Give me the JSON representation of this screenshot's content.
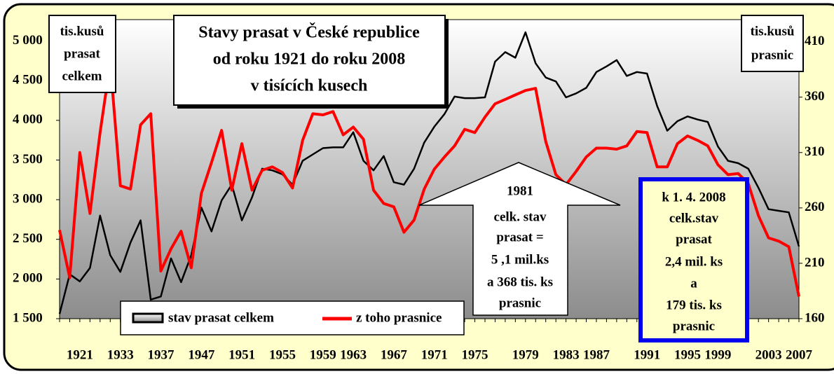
{
  "chart_data": {
    "type": "line",
    "title": [
      "Stavy prasat v České republice",
      "od roku 1921 do roku 2008",
      "v tisících kusech"
    ],
    "y_label": [
      "tis.kusů",
      "prasat",
      "celkem"
    ],
    "y2_label": [
      "tis.kusů",
      "prasnic"
    ],
    "categories": [
      null,
      null,
      "1921",
      null,
      null,
      null,
      "1933",
      null,
      null,
      null,
      "1937",
      null,
      null,
      null,
      "1947",
      null,
      null,
      null,
      "1951",
      null,
      null,
      null,
      "1955",
      null,
      null,
      null,
      "1959",
      null,
      null,
      "1963",
      null,
      null,
      null,
      "1967",
      null,
      null,
      null,
      "1971",
      null,
      null,
      null,
      "1975",
      null,
      null,
      null,
      null,
      "1979",
      null,
      null,
      null,
      "1983",
      null,
      null,
      "1987",
      null,
      null,
      null,
      null,
      "1991",
      null,
      null,
      null,
      "1995",
      null,
      null,
      "1999",
      null,
      null,
      null,
      null,
      "2003",
      null,
      null,
      "2007"
    ],
    "series": [
      {
        "name": "stav prasat celkem",
        "color": "#000000",
        "values": [
          1560,
          2060,
          1970,
          2140,
          2800,
          2300,
          2090,
          2460,
          2740,
          1740,
          1780,
          2260,
          1960,
          2300,
          2900,
          2600,
          2990,
          3190,
          2740,
          3030,
          3390,
          3370,
          3320,
          3190,
          3490,
          3570,
          3650,
          3660,
          3660,
          3850,
          3490,
          3370,
          3550,
          3220,
          3190,
          3390,
          3720,
          3920,
          4080,
          4300,
          4280,
          4280,
          4290,
          4740,
          4860,
          4790,
          5110,
          4720,
          4540,
          4490,
          4290,
          4340,
          4410,
          4610,
          4680,
          4760,
          4560,
          4610,
          4590,
          4180,
          3870,
          3990,
          4050,
          4010,
          3980,
          3670,
          3490,
          3460,
          3390,
          3150,
          2880,
          2860,
          2840,
          2410
        ]
      },
      {
        "name": "z toho prasnice",
        "color": "#ff0000",
        "axis": "y2",
        "values": [
          240,
          197,
          310,
          255,
          328,
          391,
          280,
          277,
          335,
          345,
          203,
          223,
          239,
          206,
          273,
          301,
          330,
          276,
          318,
          276,
          294,
          297,
          292,
          278,
          321,
          345,
          344,
          347,
          326,
          333,
          322,
          276,
          264,
          261,
          238,
          249,
          277,
          295,
          306,
          316,
          331,
          328,
          342,
          354,
          358,
          362,
          366,
          368,
          320,
          290,
          281,
          293,
          306,
          314,
          314,
          313,
          316,
          329,
          328,
          297,
          297,
          318,
          325,
          321,
          316,
          299,
          290,
          291,
          282,
          253,
          233,
          230,
          225,
          180
        ]
      }
    ],
    "ylim": [
      1500,
      5270
    ],
    "yticks": [
      {
        "value": 1500,
        "label": "1 500"
      },
      {
        "value": 2000,
        "label": "2 000"
      },
      {
        "value": 2500,
        "label": "2 500"
      },
      {
        "value": 3000,
        "label": "3 000"
      },
      {
        "value": 3500,
        "label": "3 500"
      },
      {
        "value": 4000,
        "label": "4 000"
      },
      {
        "value": 4500,
        "label": "4 500"
      },
      {
        "value": 5000,
        "label": "5 000"
      }
    ],
    "y2lim": [
      160,
      430
    ],
    "y2ticks": [
      160,
      210,
      260,
      310,
      360,
      410
    ],
    "annotations": [
      [
        "1981",
        "celk. stav",
        "prasat =",
        "5 ,1 mil.ks",
        "a 368 tis. ks",
        "prasnic"
      ],
      [
        "k 1. 4. 2008",
        "celk.stav",
        "prasat",
        "2,4 mil. ks",
        "a",
        "179 tis. ks",
        "prasnic"
      ]
    ]
  }
}
